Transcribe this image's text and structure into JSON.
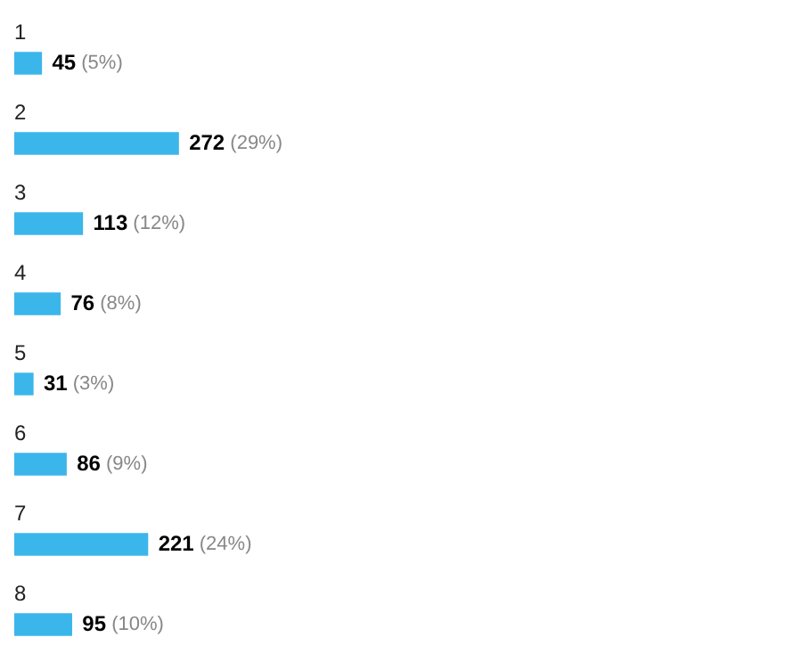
{
  "chart_data": {
    "type": "bar",
    "orientation": "horizontal",
    "categories": [
      "1",
      "2",
      "3",
      "4",
      "5",
      "6",
      "7",
      "8"
    ],
    "values": [
      45,
      272,
      113,
      76,
      31,
      86,
      221,
      95
    ],
    "value_labels": [
      "45 (5%)",
      "272 (29%)",
      "113 (12%)",
      "76 (8%)",
      "31 (3%)",
      "86 (9%)",
      "221 (24%)",
      "95 (10%)"
    ],
    "color": "#3bb6ea",
    "legend": false
  }
}
